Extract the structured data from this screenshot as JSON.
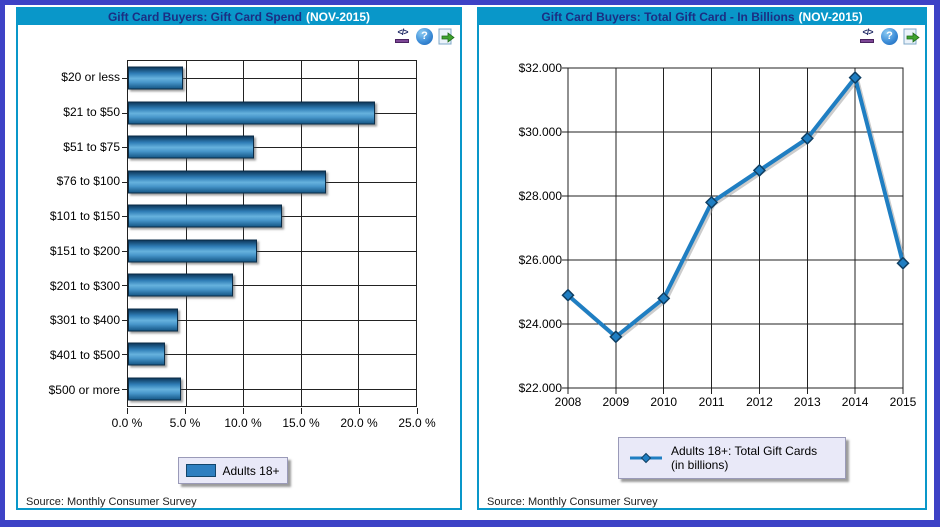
{
  "colors": {
    "frame": "#3D42C6",
    "panel_border": "#0997C9",
    "titlebar_bg": "#0997C9",
    "title_text": "#1B2E83",
    "title_period_text": "#FFFFFF",
    "bar_fill_mid": "#66B2DE",
    "line_color": "#1F7EC2",
    "legend_bg": "#E9E9F8"
  },
  "panels": [
    {
      "title_main": "Gift Card Buyers: Gift Card Spend",
      "title_period": "(NOV-2015)",
      "source": "Source: Monthly Consumer Survey",
      "legend": {
        "label": "Adults 18+"
      },
      "icons": [
        {
          "name": "embed-code-icon",
          "glyph": "</>"
        },
        {
          "name": "help-icon",
          "glyph": "?"
        },
        {
          "name": "export-icon",
          "glyph": "page-with-green-arrow"
        }
      ]
    },
    {
      "title_main": "Gift Card Buyers: Total Gift Card - In Billions",
      "title_period": "(NOV-2015)",
      "source": "Source: Monthly Consumer Survey",
      "legend": {
        "label_line1": "Adults 18+: Total Gift Cards",
        "label_line2": "(in billions)"
      },
      "icons": [
        {
          "name": "embed-code-icon",
          "glyph": "</>"
        },
        {
          "name": "help-icon",
          "glyph": "?"
        },
        {
          "name": "export-icon",
          "glyph": "page-with-green-arrow"
        }
      ]
    }
  ],
  "chart_data": [
    {
      "type": "bar",
      "orientation": "horizontal",
      "title": "Gift Card Buyers: Gift Card Spend (NOV-2015)",
      "categories": [
        "$20 or less",
        "$21 to $50",
        "$51 to $75",
        "$76 to $100",
        "$101 to $150",
        "$151 to $200",
        "$201 to $300",
        "$301 to $400",
        "$401 to $500",
        "$500 or more"
      ],
      "series": [
        {
          "name": "Adults 18+",
          "values": [
            4.8,
            21.4,
            10.9,
            17.2,
            13.4,
            11.2,
            9.1,
            4.3,
            3.2,
            4.6
          ]
        }
      ],
      "xlim": [
        0,
        25
      ],
      "x_tick_labels": [
        "0.0 %",
        "5.0 %",
        "10.0 %",
        "15.0 %",
        "20.0 %",
        "25.0 %"
      ],
      "xlabel": "",
      "ylabel": "",
      "grid": "both",
      "legend_position": "bottom",
      "source": "Source: Monthly Consumer Survey"
    },
    {
      "type": "line",
      "title": "Gift Card Buyers: Total Gift Card - In Billions (NOV-2015)",
      "x": [
        2008,
        2009,
        2010,
        2011,
        2012,
        2013,
        2014,
        2015
      ],
      "series": [
        {
          "name": "Adults 18+: Total Gift Cards (in billions)",
          "values": [
            24.9,
            23.6,
            24.8,
            27.8,
            28.8,
            29.8,
            31.7,
            25.9
          ]
        }
      ],
      "ylim": [
        22,
        32
      ],
      "y_tick_labels_top_to_bottom": [
        "$32.000",
        "$30.000",
        "$28.000",
        "$26.000",
        "$24.000",
        "$22.000"
      ],
      "marker": "diamond",
      "grid": "both",
      "legend_position": "bottom",
      "source": "Source: Monthly Consumer Survey"
    }
  ]
}
